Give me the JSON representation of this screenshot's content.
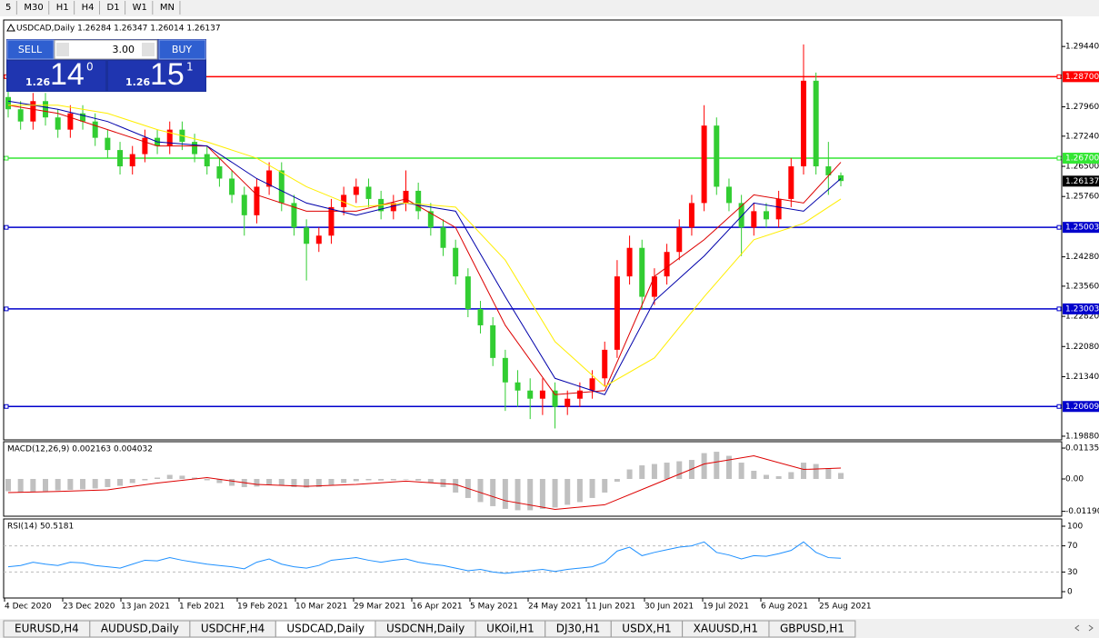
{
  "toolbar": [
    "5",
    "M30",
    "H1",
    "H4",
    "D1",
    "W1",
    "MN"
  ],
  "chart": {
    "header": "USDCAD,Daily  1.26284 1.26347 1.26014 1.26137",
    "trade_panel": {
      "sell": "SELL",
      "buy": "BUY",
      "lots": "3.00",
      "sell_price": {
        "prefix": "1.26",
        "pips": "14",
        "point": "0"
      },
      "buy_price": {
        "prefix": "1.26",
        "pips": "15",
        "point": "1"
      }
    },
    "ylim": [
      1.1979,
      1.3009
    ],
    "yticks": [
      {
        "value": 1.2944,
        "label": "1.29440"
      },
      {
        "value": 1.2796,
        "label": "1.27960"
      },
      {
        "value": 1.2724,
        "label": "1.27240"
      },
      {
        "value": 1.265,
        "label": "1.26500"
      },
      {
        "value": 1.2576,
        "label": "1.25760"
      },
      {
        "value": 1.2428,
        "label": "1.24280"
      },
      {
        "value": 1.2356,
        "label": "1.23560"
      },
      {
        "value": 1.2282,
        "label": "1.22820"
      },
      {
        "value": 1.2208,
        "label": "1.22080"
      },
      {
        "value": 1.2134,
        "label": "1.21340"
      },
      {
        "value": 1.1988,
        "label": "1.19880"
      }
    ],
    "levels": [
      {
        "value": 1.287,
        "label": "1.28700",
        "color": "#ff0000"
      },
      {
        "value": 1.267,
        "label": "1.26700",
        "color": "#33e633"
      },
      {
        "value": 1.25003,
        "label": "1.25003",
        "color": "#0000cc"
      },
      {
        "value": 1.23003,
        "label": "1.23003",
        "color": "#0000cc"
      },
      {
        "value": 1.20609,
        "label": "1.20609",
        "color": "#0000cc"
      }
    ],
    "current_price": {
      "value": 1.26137,
      "label": "1.26137"
    },
    "bull_color": "#ff0000",
    "bear_color": "#32cd32",
    "candles": [
      [
        1.282,
        1.284,
        1.277,
        1.279
      ],
      [
        1.279,
        1.281,
        1.274,
        1.276
      ],
      [
        1.276,
        1.283,
        1.274,
        1.281
      ],
      [
        1.281,
        1.283,
        1.275,
        1.277
      ],
      [
        1.277,
        1.279,
        1.272,
        1.274
      ],
      [
        1.274,
        1.28,
        1.272,
        1.278
      ],
      [
        1.278,
        1.28,
        1.274,
        1.276
      ],
      [
        1.276,
        1.278,
        1.27,
        1.272
      ],
      [
        1.272,
        1.274,
        1.267,
        1.269
      ],
      [
        1.269,
        1.271,
        1.263,
        1.265
      ],
      [
        1.265,
        1.27,
        1.263,
        1.268
      ],
      [
        1.268,
        1.274,
        1.266,
        1.272
      ],
      [
        1.272,
        1.274,
        1.268,
        1.27
      ],
      [
        1.27,
        1.276,
        1.268,
        1.274
      ],
      [
        1.274,
        1.276,
        1.269,
        1.271
      ],
      [
        1.271,
        1.273,
        1.266,
        1.268
      ],
      [
        1.268,
        1.27,
        1.263,
        1.265
      ],
      [
        1.265,
        1.267,
        1.26,
        1.262
      ],
      [
        1.262,
        1.264,
        1.256,
        1.258
      ],
      [
        1.258,
        1.26,
        1.248,
        1.253
      ],
      [
        1.253,
        1.262,
        1.251,
        1.26
      ],
      [
        1.26,
        1.266,
        1.258,
        1.264
      ],
      [
        1.264,
        1.266,
        1.254,
        1.256
      ],
      [
        1.256,
        1.258,
        1.248,
        1.25
      ],
      [
        1.25,
        1.252,
        1.237,
        1.246
      ],
      [
        1.246,
        1.25,
        1.244,
        1.248
      ],
      [
        1.248,
        1.257,
        1.246,
        1.255
      ],
      [
        1.255,
        1.26,
        1.253,
        1.258
      ],
      [
        1.258,
        1.262,
        1.256,
        1.26
      ],
      [
        1.26,
        1.262,
        1.255,
        1.257
      ],
      [
        1.257,
        1.259,
        1.252,
        1.254
      ],
      [
        1.254,
        1.258,
        1.252,
        1.256
      ],
      [
        1.256,
        1.264,
        1.254,
        1.259
      ],
      [
        1.259,
        1.261,
        1.252,
        1.254
      ],
      [
        1.254,
        1.256,
        1.248,
        1.25
      ],
      [
        1.25,
        1.252,
        1.243,
        1.245
      ],
      [
        1.245,
        1.247,
        1.236,
        1.238
      ],
      [
        1.238,
        1.24,
        1.228,
        1.23
      ],
      [
        1.23,
        1.232,
        1.224,
        1.226
      ],
      [
        1.226,
        1.228,
        1.216,
        1.218
      ],
      [
        1.218,
        1.22,
        1.205,
        1.212
      ],
      [
        1.212,
        1.215,
        1.206,
        1.21
      ],
      [
        1.21,
        1.213,
        1.203,
        1.208
      ],
      [
        1.208,
        1.213,
        1.204,
        1.21
      ],
      [
        1.21,
        1.212,
        1.2007,
        1.206
      ],
      [
        1.206,
        1.21,
        1.204,
        1.208
      ],
      [
        1.208,
        1.212,
        1.206,
        1.21
      ],
      [
        1.21,
        1.215,
        1.208,
        1.213
      ],
      [
        1.213,
        1.222,
        1.211,
        1.22
      ],
      [
        1.22,
        1.242,
        1.218,
        1.238
      ],
      [
        1.238,
        1.248,
        1.236,
        1.245
      ],
      [
        1.245,
        1.247,
        1.23,
        1.233
      ],
      [
        1.233,
        1.24,
        1.231,
        1.238
      ],
      [
        1.238,
        1.246,
        1.236,
        1.244
      ],
      [
        1.244,
        1.252,
        1.242,
        1.25
      ],
      [
        1.25,
        1.258,
        1.248,
        1.256
      ],
      [
        1.256,
        1.28,
        1.254,
        1.275
      ],
      [
        1.275,
        1.277,
        1.258,
        1.26
      ],
      [
        1.26,
        1.262,
        1.254,
        1.256
      ],
      [
        1.256,
        1.258,
        1.243,
        1.25
      ],
      [
        1.25,
        1.256,
        1.248,
        1.254
      ],
      [
        1.254,
        1.256,
        1.25,
        1.252
      ],
      [
        1.252,
        1.259,
        1.25,
        1.257
      ],
      [
        1.257,
        1.267,
        1.255,
        1.265
      ],
      [
        1.265,
        1.2949,
        1.263,
        1.286
      ],
      [
        1.286,
        1.288,
        1.263,
        1.265
      ],
      [
        1.265,
        1.271,
        1.258,
        1.2628
      ],
      [
        1.2628,
        1.2635,
        1.2601,
        1.2614
      ]
    ],
    "ma_x": [
      0,
      4,
      8,
      12,
      16,
      20,
      24,
      28,
      32,
      36,
      40,
      44,
      48,
      52,
      56,
      60,
      64,
      67
    ],
    "moving_averages": [
      {
        "color": "#dd0000",
        "values": [
          1.28,
          1.278,
          1.274,
          1.27,
          1.27,
          1.258,
          1.254,
          1.254,
          1.257,
          1.25,
          1.226,
          1.209,
          1.21,
          1.238,
          1.247,
          1.258,
          1.256,
          1.266
        ]
      },
      {
        "color": "#0000aa",
        "values": [
          1.281,
          1.279,
          1.276,
          1.271,
          1.27,
          1.262,
          1.256,
          1.253,
          1.256,
          1.254,
          1.233,
          1.213,
          1.209,
          1.232,
          1.243,
          1.256,
          1.254,
          1.262
        ]
      },
      {
        "color": "#ffee00",
        "values": [
          1.28,
          1.28,
          1.278,
          1.274,
          1.271,
          1.267,
          1.26,
          1.255,
          1.256,
          1.255,
          1.242,
          1.222,
          1.211,
          1.218,
          1.233,
          1.247,
          1.251,
          1.257
        ]
      }
    ],
    "x_labels": [
      "4 Dec 2020",
      "23 Dec 2020",
      "13 Jan 2021",
      "1 Feb 2021",
      "19 Feb 2021",
      "10 Mar 2021",
      "29 Mar 2021",
      "16 Apr 2021",
      "5 May 2021",
      "24 May 2021",
      "11 Jun 2021",
      "30 Jun 2021",
      "19 Jul 2021",
      "6 Aug 2021",
      "25 Aug 2021"
    ]
  },
  "macd": {
    "title": "MACD(12,26,9) 0.002163 0.004032",
    "ylim": [
      -0.0137,
      0.0137
    ],
    "yticks": [
      {
        "value": 0.01135,
        "label": "0.01135"
      },
      {
        "value": 0,
        "label": "0.00"
      },
      {
        "value": -0.011904,
        "label": "-0.011904"
      }
    ],
    "hist_color": "#c0c0c0",
    "signal_color": "#dd0000",
    "histogram": [
      -0.0045,
      -0.005,
      -0.0048,
      -0.0045,
      -0.0042,
      -0.004,
      -0.0038,
      -0.0035,
      -0.003,
      -0.0025,
      -0.0015,
      -0.0005,
      0.0005,
      0.0015,
      0.0012,
      0.0005,
      -0.0005,
      -0.0015,
      -0.0025,
      -0.003,
      -0.0028,
      -0.0022,
      -0.0025,
      -0.003,
      -0.0032,
      -0.003,
      -0.0022,
      -0.0015,
      -0.0008,
      -0.0005,
      -0.0006,
      -0.0005,
      -0.0002,
      -0.0006,
      -0.0015,
      -0.003,
      -0.005,
      -0.007,
      -0.0085,
      -0.01,
      -0.011,
      -0.0115,
      -0.0115,
      -0.011,
      -0.0105,
      -0.0095,
      -0.0085,
      -0.007,
      -0.005,
      -0.001,
      0.0035,
      0.005,
      0.0055,
      0.006,
      0.0065,
      0.007,
      0.0095,
      0.01,
      0.0085,
      0.006,
      0.003,
      0.0015,
      0.001,
      0.0025,
      0.006,
      0.0055,
      0.004,
      0.0022
    ],
    "signal": [
      -0.005,
      -0.0046,
      -0.004,
      -0.0015,
      0.0005,
      -0.002,
      -0.0027,
      -0.002,
      -0.0008,
      -0.002,
      -0.008,
      -0.0112,
      -0.0095,
      -0.002,
      0.0055,
      0.0085,
      0.0035,
      0.004
    ]
  },
  "rsi": {
    "title": "RSI(14) 50.5181",
    "ylim": [
      -9.7,
      111.1
    ],
    "yticks": [
      100,
      70,
      30,
      0
    ],
    "levels": [
      70,
      30
    ],
    "color": "#1e90ff",
    "values": [
      38,
      40,
      45,
      42,
      40,
      45,
      44,
      40,
      38,
      36,
      42,
      48,
      47,
      52,
      48,
      45,
      42,
      40,
      38,
      35,
      45,
      50,
      42,
      38,
      36,
      40,
      48,
      50,
      52,
      48,
      45,
      48,
      50,
      45,
      42,
      40,
      36,
      32,
      34,
      30,
      28,
      30,
      32,
      34,
      31,
      34,
      36,
      38,
      45,
      62,
      68,
      55,
      60,
      64,
      68,
      70,
      76,
      60,
      56,
      50,
      55,
      54,
      58,
      63,
      76,
      60,
      52,
      51
    ]
  },
  "tabs": [
    "EURUSD,H4",
    "AUDUSD,Daily",
    "USDCHF,H4",
    "USDCAD,Daily",
    "USDCNH,Daily",
    "UKOil,H1",
    "DJ30,H1",
    "USDX,H1",
    "XAUUSD,H1",
    "GBPUSD,H1"
  ]
}
